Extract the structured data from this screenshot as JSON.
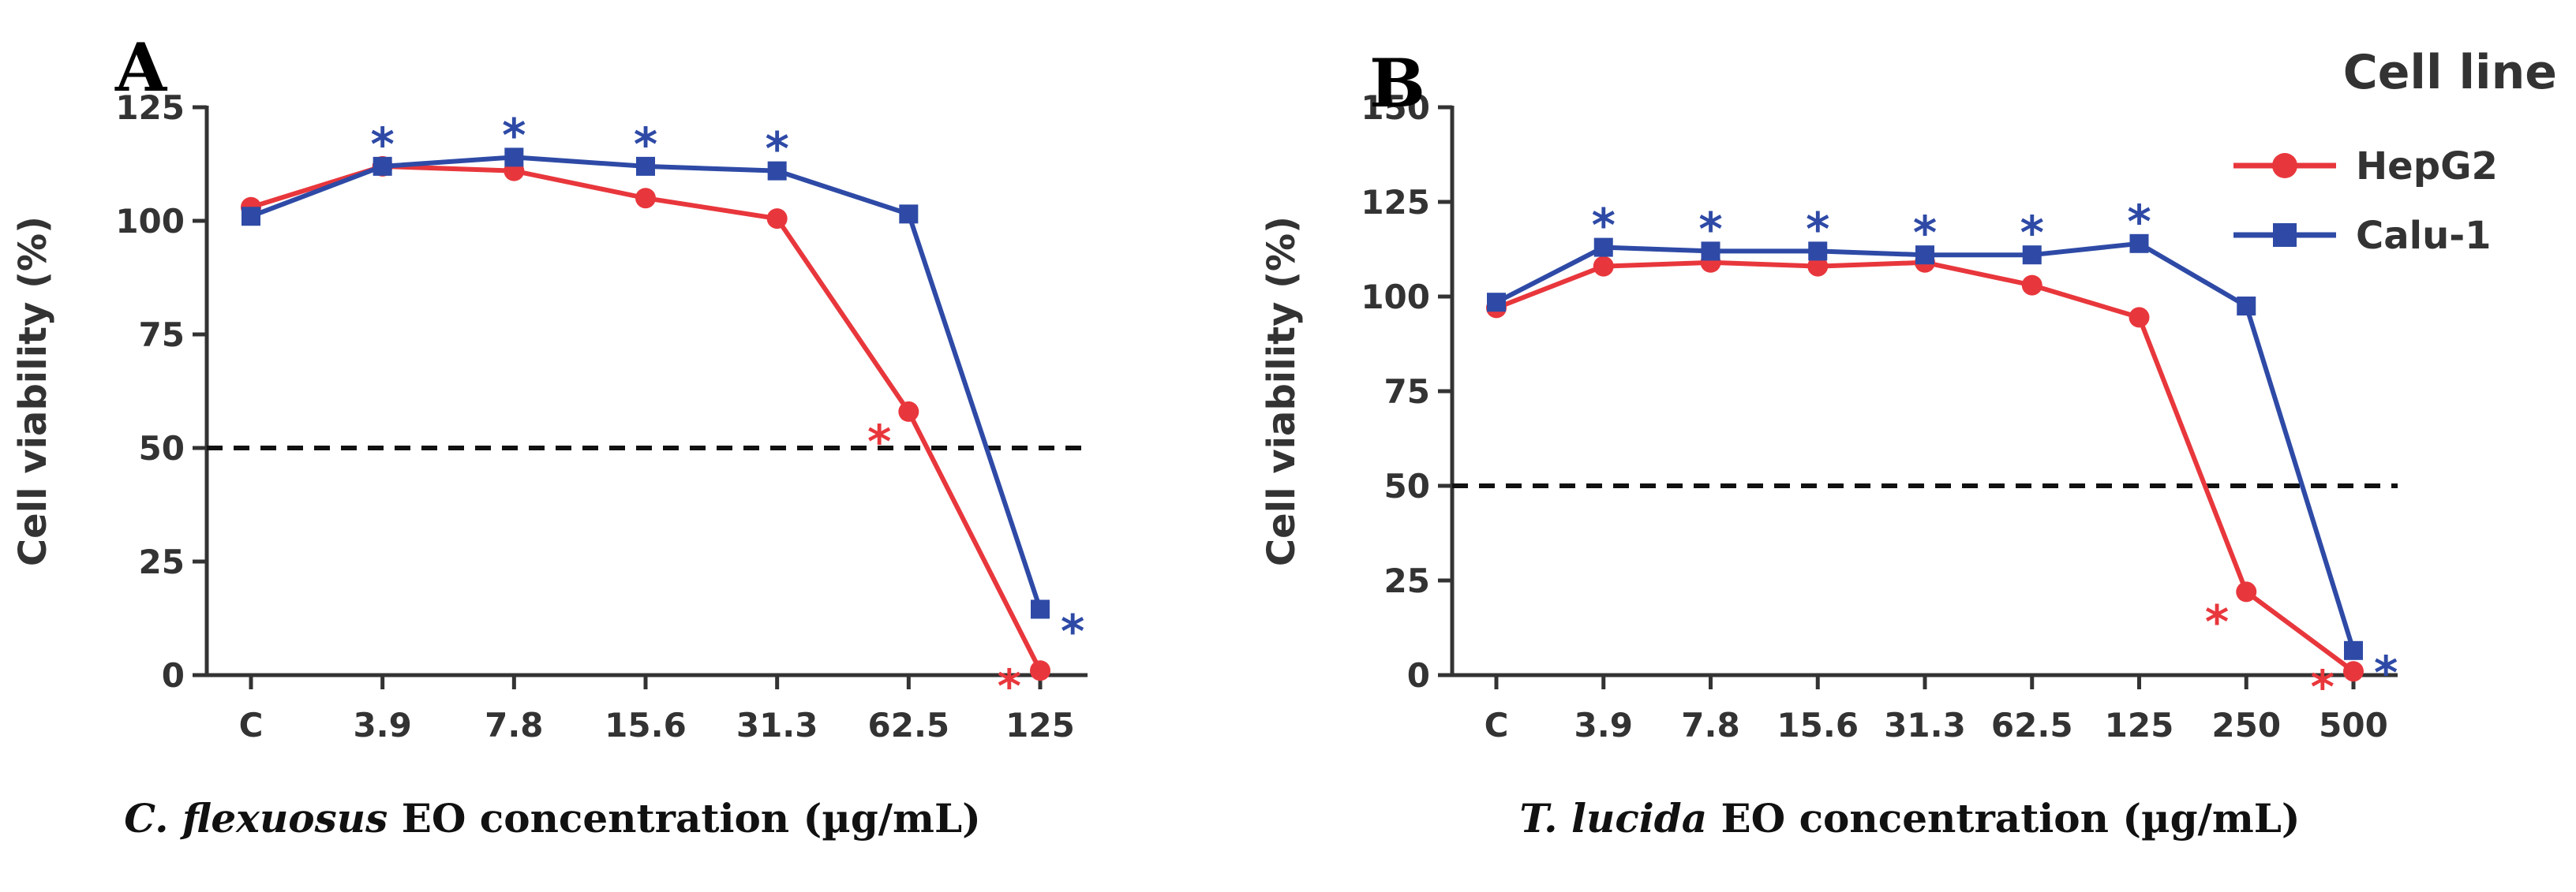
{
  "colors": {
    "hepg2": "#e8373c",
    "calu1": "#2e4aa6",
    "axis": "#333333",
    "threshold": "#111111"
  },
  "legend": {
    "title": "Cell line",
    "entries": [
      {
        "key": "hepg2",
        "label": "HepG2",
        "marker": "circle"
      },
      {
        "key": "calu1",
        "label": "Calu-1",
        "marker": "square"
      }
    ]
  },
  "chart_data": [
    {
      "type": "line",
      "panel": "A",
      "ylabel": "Cell viability (%)",
      "xlabel_italic": "C. flexuosus",
      "xlabel_rest": " EO concentration (µg/mL)",
      "categories": [
        "C",
        "3.9",
        "7.8",
        "15.6",
        "31.3",
        "62.5",
        "125"
      ],
      "ylim": [
        0,
        125
      ],
      "yticks": [
        0,
        25,
        50,
        75,
        100,
        125
      ],
      "threshold": 50,
      "series": [
        {
          "key": "hepg2",
          "name": "HepG2",
          "values": [
            103,
            112,
            111,
            105,
            100.5,
            58,
            1
          ],
          "significant": [
            false,
            false,
            false,
            false,
            false,
            true,
            true
          ]
        },
        {
          "key": "calu1",
          "name": "Calu-1",
          "values": [
            101,
            112,
            114,
            112,
            111,
            101.5,
            14.5
          ],
          "significant": [
            false,
            true,
            true,
            true,
            true,
            false,
            true
          ]
        }
      ]
    },
    {
      "type": "line",
      "panel": "B",
      "ylabel": "Cell viability (%)",
      "xlabel_italic": "T. lucida",
      "xlabel_rest": " EO concentration (µg/mL)",
      "categories": [
        "C",
        "3.9",
        "7.8",
        "15.6",
        "31.3",
        "62.5",
        "125",
        "250",
        "500"
      ],
      "ylim": [
        0,
        150
      ],
      "yticks": [
        0,
        25,
        50,
        75,
        100,
        125,
        150
      ],
      "threshold": 50,
      "series": [
        {
          "key": "hepg2",
          "name": "HepG2",
          "values": [
            97,
            108,
            109,
            108,
            109,
            103,
            94.5,
            22,
            1
          ],
          "significant": [
            false,
            false,
            false,
            false,
            false,
            false,
            false,
            true,
            true
          ]
        },
        {
          "key": "calu1",
          "name": "Calu-1",
          "values": [
            98.5,
            113,
            112,
            112,
            111,
            111,
            114,
            97.5,
            6.5
          ],
          "significant": [
            false,
            true,
            true,
            true,
            true,
            true,
            true,
            false,
            true
          ]
        }
      ]
    }
  ]
}
